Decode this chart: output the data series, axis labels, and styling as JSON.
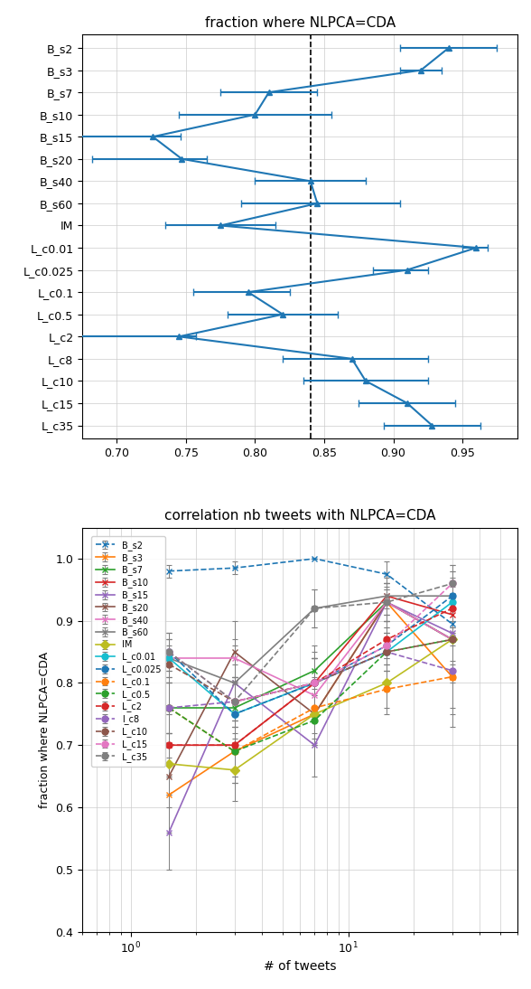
{
  "top_chart": {
    "title": "fraction where NLPCA=CDA",
    "dashed_line_x": 0.84,
    "xlim": [
      0.675,
      0.99
    ],
    "xticks": [
      0.7,
      0.75,
      0.8,
      0.85,
      0.9,
      0.95
    ],
    "categories": [
      "L_c35",
      "L_c15",
      "L_c10",
      "L_c8",
      "L_c2",
      "L_c0.5",
      "L_c0.1",
      "L_c0.025",
      "L_c0.01",
      "IM",
      "B_s60",
      "B_s40",
      "B_s20",
      "B_s15",
      "B_s10",
      "B_s7",
      "B_s3",
      "B_s2"
    ],
    "means": [
      0.928,
      0.91,
      0.88,
      0.87,
      0.745,
      0.82,
      0.795,
      0.91,
      0.96,
      0.775,
      0.845,
      0.84,
      0.747,
      0.726,
      0.8,
      0.81,
      0.92,
      0.94
    ],
    "xerr_lo": [
      0.035,
      0.035,
      0.045,
      0.05,
      0.075,
      0.04,
      0.04,
      0.025,
      0.01,
      0.04,
      0.055,
      0.04,
      0.065,
      0.075,
      0.055,
      0.035,
      0.015,
      0.035
    ],
    "xerr_hi": [
      0.035,
      0.035,
      0.045,
      0.055,
      0.012,
      0.04,
      0.03,
      0.015,
      0.008,
      0.04,
      0.06,
      0.04,
      0.018,
      0.02,
      0.055,
      0.035,
      0.015,
      0.035
    ],
    "color": "#1f77b4"
  },
  "bottom_chart": {
    "title": "correlation nb tweets with NLPCA=CDA",
    "xlabel": "# of tweets",
    "ylabel": "fraction where NLPCA=CDA",
    "ylim": [
      0.4,
      1.05
    ],
    "yticks": [
      0.4,
      0.5,
      0.6,
      0.7,
      0.8,
      0.9,
      1.0
    ],
    "series": {
      "B_s2": {
        "color": "#1f77b4",
        "marker": "x",
        "linestyle": "--",
        "x": [
          1.5,
          3,
          7,
          15,
          30
        ],
        "y": [
          0.98,
          0.985,
          1.0,
          0.975,
          0.895
        ],
        "yerr": [
          0.01,
          0.01,
          0.0,
          0.02,
          0.06
        ]
      },
      "B_s3": {
        "color": "#ff7f0e",
        "marker": "x",
        "linestyle": "-",
        "x": [
          1.5,
          3,
          7,
          15,
          30
        ],
        "y": [
          0.62,
          0.69,
          0.75,
          0.93,
          0.81
        ],
        "yerr": [
          0.06,
          0.05,
          0.05,
          0.03,
          0.08
        ]
      },
      "B_s7": {
        "color": "#2ca02c",
        "marker": "x",
        "linestyle": "-",
        "x": [
          1.5,
          3,
          7,
          15,
          30
        ],
        "y": [
          0.76,
          0.76,
          0.82,
          0.93,
          0.87
        ],
        "yerr": [
          0.04,
          0.04,
          0.04,
          0.03,
          0.07
        ]
      },
      "B_s10": {
        "color": "#d62728",
        "marker": "x",
        "linestyle": "-",
        "x": [
          1.5,
          3,
          7,
          15,
          30
        ],
        "y": [
          0.7,
          0.7,
          0.8,
          0.94,
          0.91
        ],
        "yerr": [
          0.05,
          0.05,
          0.05,
          0.03,
          0.05
        ]
      },
      "B_s15": {
        "color": "#9467bd",
        "marker": "x",
        "linestyle": "-",
        "x": [
          1.5,
          3,
          7,
          15,
          30
        ],
        "y": [
          0.56,
          0.8,
          0.7,
          0.93,
          0.88
        ],
        "yerr": [
          0.06,
          0.06,
          0.05,
          0.03,
          0.05
        ]
      },
      "B_s20": {
        "color": "#8c564b",
        "marker": "x",
        "linestyle": "-",
        "x": [
          1.5,
          3,
          7,
          15,
          30
        ],
        "y": [
          0.65,
          0.85,
          0.75,
          0.93,
          0.87
        ],
        "yerr": [
          0.05,
          0.05,
          0.05,
          0.03,
          0.06
        ]
      },
      "B_s40": {
        "color": "#e377c2",
        "marker": "x",
        "linestyle": "-",
        "x": [
          1.5,
          3,
          7,
          15,
          30
        ],
        "y": [
          0.84,
          0.84,
          0.78,
          0.93,
          0.87
        ],
        "yerr": [
          0.03,
          0.03,
          0.03,
          0.02,
          0.05
        ]
      },
      "B_s60": {
        "color": "#7f7f7f",
        "marker": "x",
        "linestyle": "-",
        "x": [
          1.5,
          3,
          7,
          15,
          30
        ],
        "y": [
          0.84,
          0.8,
          0.92,
          0.94,
          0.94
        ],
        "yerr": [
          0.03,
          0.03,
          0.03,
          0.02,
          0.04
        ]
      },
      "IM": {
        "color": "#bcbd22",
        "marker": "D",
        "linestyle": "-",
        "x": [
          1.5,
          3,
          7,
          15,
          30
        ],
        "y": [
          0.67,
          0.66,
          0.75,
          0.8,
          0.87
        ],
        "yerr": [
          0.05,
          0.05,
          0.04,
          0.04,
          0.05
        ]
      },
      "L_c0.01": {
        "color": "#17becf",
        "marker": "o",
        "linestyle": "-",
        "x": [
          1.5,
          3,
          7,
          15,
          30
        ],
        "y": [
          0.84,
          0.75,
          0.8,
          0.85,
          0.93
        ],
        "yerr": [
          0.03,
          0.05,
          0.04,
          0.03,
          0.04
        ]
      },
      "L_c0.025": {
        "color": "#1f77b4",
        "marker": "o",
        "linestyle": "--",
        "x": [
          1.5,
          3,
          7,
          15,
          30
        ],
        "y": [
          0.85,
          0.75,
          0.8,
          0.86,
          0.94
        ],
        "yerr": [
          0.03,
          0.05,
          0.04,
          0.03,
          0.04
        ]
      },
      "L_c0.1": {
        "color": "#ff7f0e",
        "marker": "o",
        "linestyle": "--",
        "x": [
          1.5,
          3,
          7,
          15,
          30
        ],
        "y": [
          0.76,
          0.69,
          0.76,
          0.79,
          0.81
        ],
        "yerr": [
          0.04,
          0.05,
          0.04,
          0.04,
          0.06
        ]
      },
      "L_c0.5": {
        "color": "#2ca02c",
        "marker": "o",
        "linestyle": "--",
        "x": [
          1.5,
          3,
          7,
          15,
          30
        ],
        "y": [
          0.76,
          0.69,
          0.74,
          0.85,
          0.87
        ],
        "yerr": [
          0.04,
          0.05,
          0.04,
          0.03,
          0.05
        ]
      },
      "L_c2": {
        "color": "#d62728",
        "marker": "o",
        "linestyle": "--",
        "x": [
          1.5,
          3,
          7,
          15,
          30
        ],
        "y": [
          0.7,
          0.7,
          0.8,
          0.87,
          0.92
        ],
        "yerr": [
          0.05,
          0.05,
          0.04,
          0.03,
          0.04
        ]
      },
      "l_c8": {
        "color": "#9467bd",
        "marker": "o",
        "linestyle": "--",
        "x": [
          1.5,
          3,
          7,
          15,
          30
        ],
        "y": [
          0.76,
          0.77,
          0.8,
          0.85,
          0.82
        ],
        "yerr": [
          0.04,
          0.04,
          0.04,
          0.03,
          0.06
        ]
      },
      "L_c10": {
        "color": "#8c564b",
        "marker": "o",
        "linestyle": "--",
        "x": [
          1.5,
          3,
          7,
          15,
          30
        ],
        "y": [
          0.83,
          0.77,
          0.8,
          0.85,
          0.87
        ],
        "yerr": [
          0.03,
          0.04,
          0.04,
          0.03,
          0.05
        ]
      },
      "L_c15": {
        "color": "#e377c2",
        "marker": "o",
        "linestyle": "--",
        "x": [
          1.5,
          3,
          7,
          15,
          30
        ],
        "y": [
          0.85,
          0.77,
          0.8,
          0.86,
          0.96
        ],
        "yerr": [
          0.03,
          0.04,
          0.04,
          0.03,
          0.03
        ]
      },
      "L_c35": {
        "color": "#7f7f7f",
        "marker": "o",
        "linestyle": "--",
        "x": [
          1.5,
          3,
          7,
          15,
          30
        ],
        "y": [
          0.85,
          0.77,
          0.92,
          0.93,
          0.96
        ],
        "yerr": [
          0.03,
          0.04,
          0.03,
          0.02,
          0.03
        ]
      }
    },
    "legend_order": [
      "B_s2",
      "B_s3",
      "B_s7",
      "B_s10",
      "B_s15",
      "B_s20",
      "B_s40",
      "B_s60",
      "IM",
      "L_c0.01",
      "L_c0.025",
      "L_c0.1",
      "L_c0.5",
      "L_c2",
      "l_c8",
      "L_c10",
      "L_c15",
      "L_c35"
    ],
    "legend_labels": [
      "B_s2",
      "B_s3",
      "B_s7",
      "B_s10",
      "B_s15",
      "B_s20",
      "B_s40",
      "B_s60",
      "IM",
      "L_c0.01",
      "L_c0.025",
      "L_c0.1",
      "L_c0.5",
      "L_c2",
      "l_c8",
      "L_c10",
      "L_c15",
      "L_c35"
    ]
  }
}
